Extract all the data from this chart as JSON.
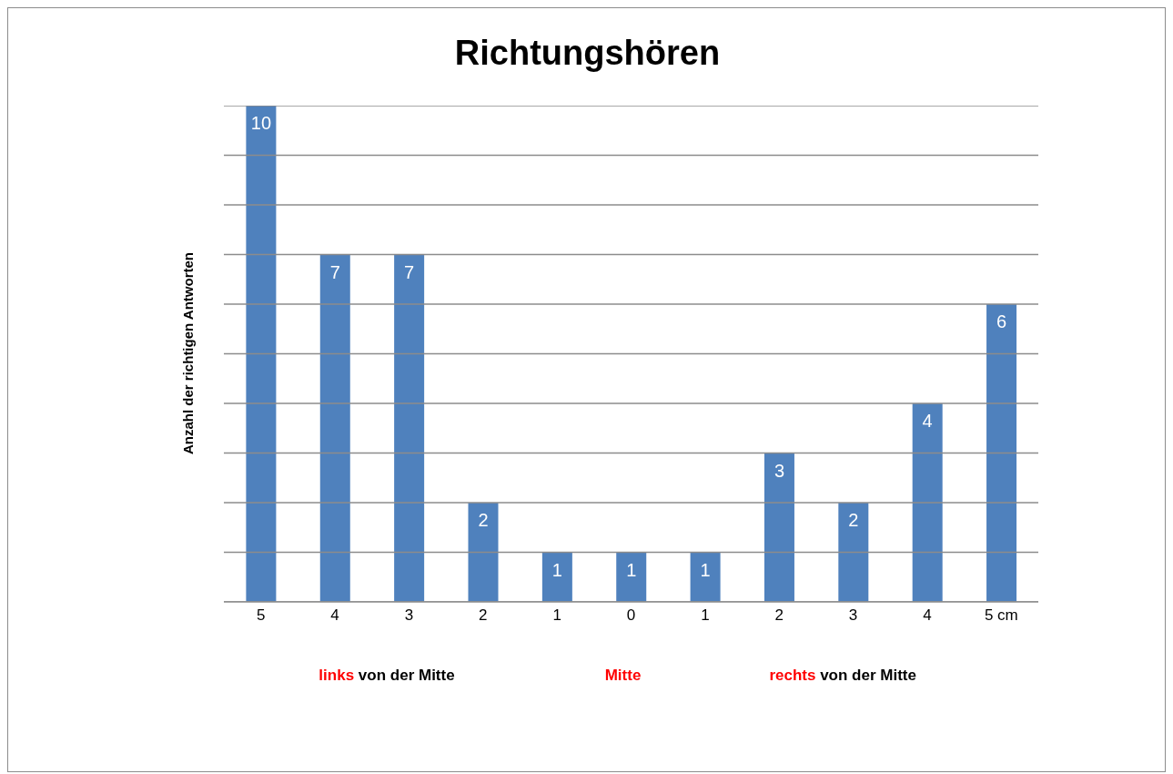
{
  "chart_data": {
    "type": "bar",
    "title": "Richtungshören",
    "ylabel": "Anzahl der richtigen Antworten",
    "categories": [
      "5",
      "4",
      "3",
      "2",
      "1",
      "0",
      "1",
      "2",
      "3",
      "4",
      "5 cm"
    ],
    "values": [
      10,
      7,
      7,
      2,
      1,
      1,
      1,
      3,
      2,
      4,
      6
    ],
    "color": "#4f81bd",
    "ylim": [
      0,
      10
    ],
    "yticks": [
      0,
      1,
      2,
      3,
      4,
      5,
      6,
      7,
      8,
      9,
      10
    ],
    "tick_labels": "x",
    "grid": "y",
    "data_labels": true,
    "annotations": [
      "links von der Mitte",
      "Mitte",
      "rechts von der Mitte"
    ]
  }
}
